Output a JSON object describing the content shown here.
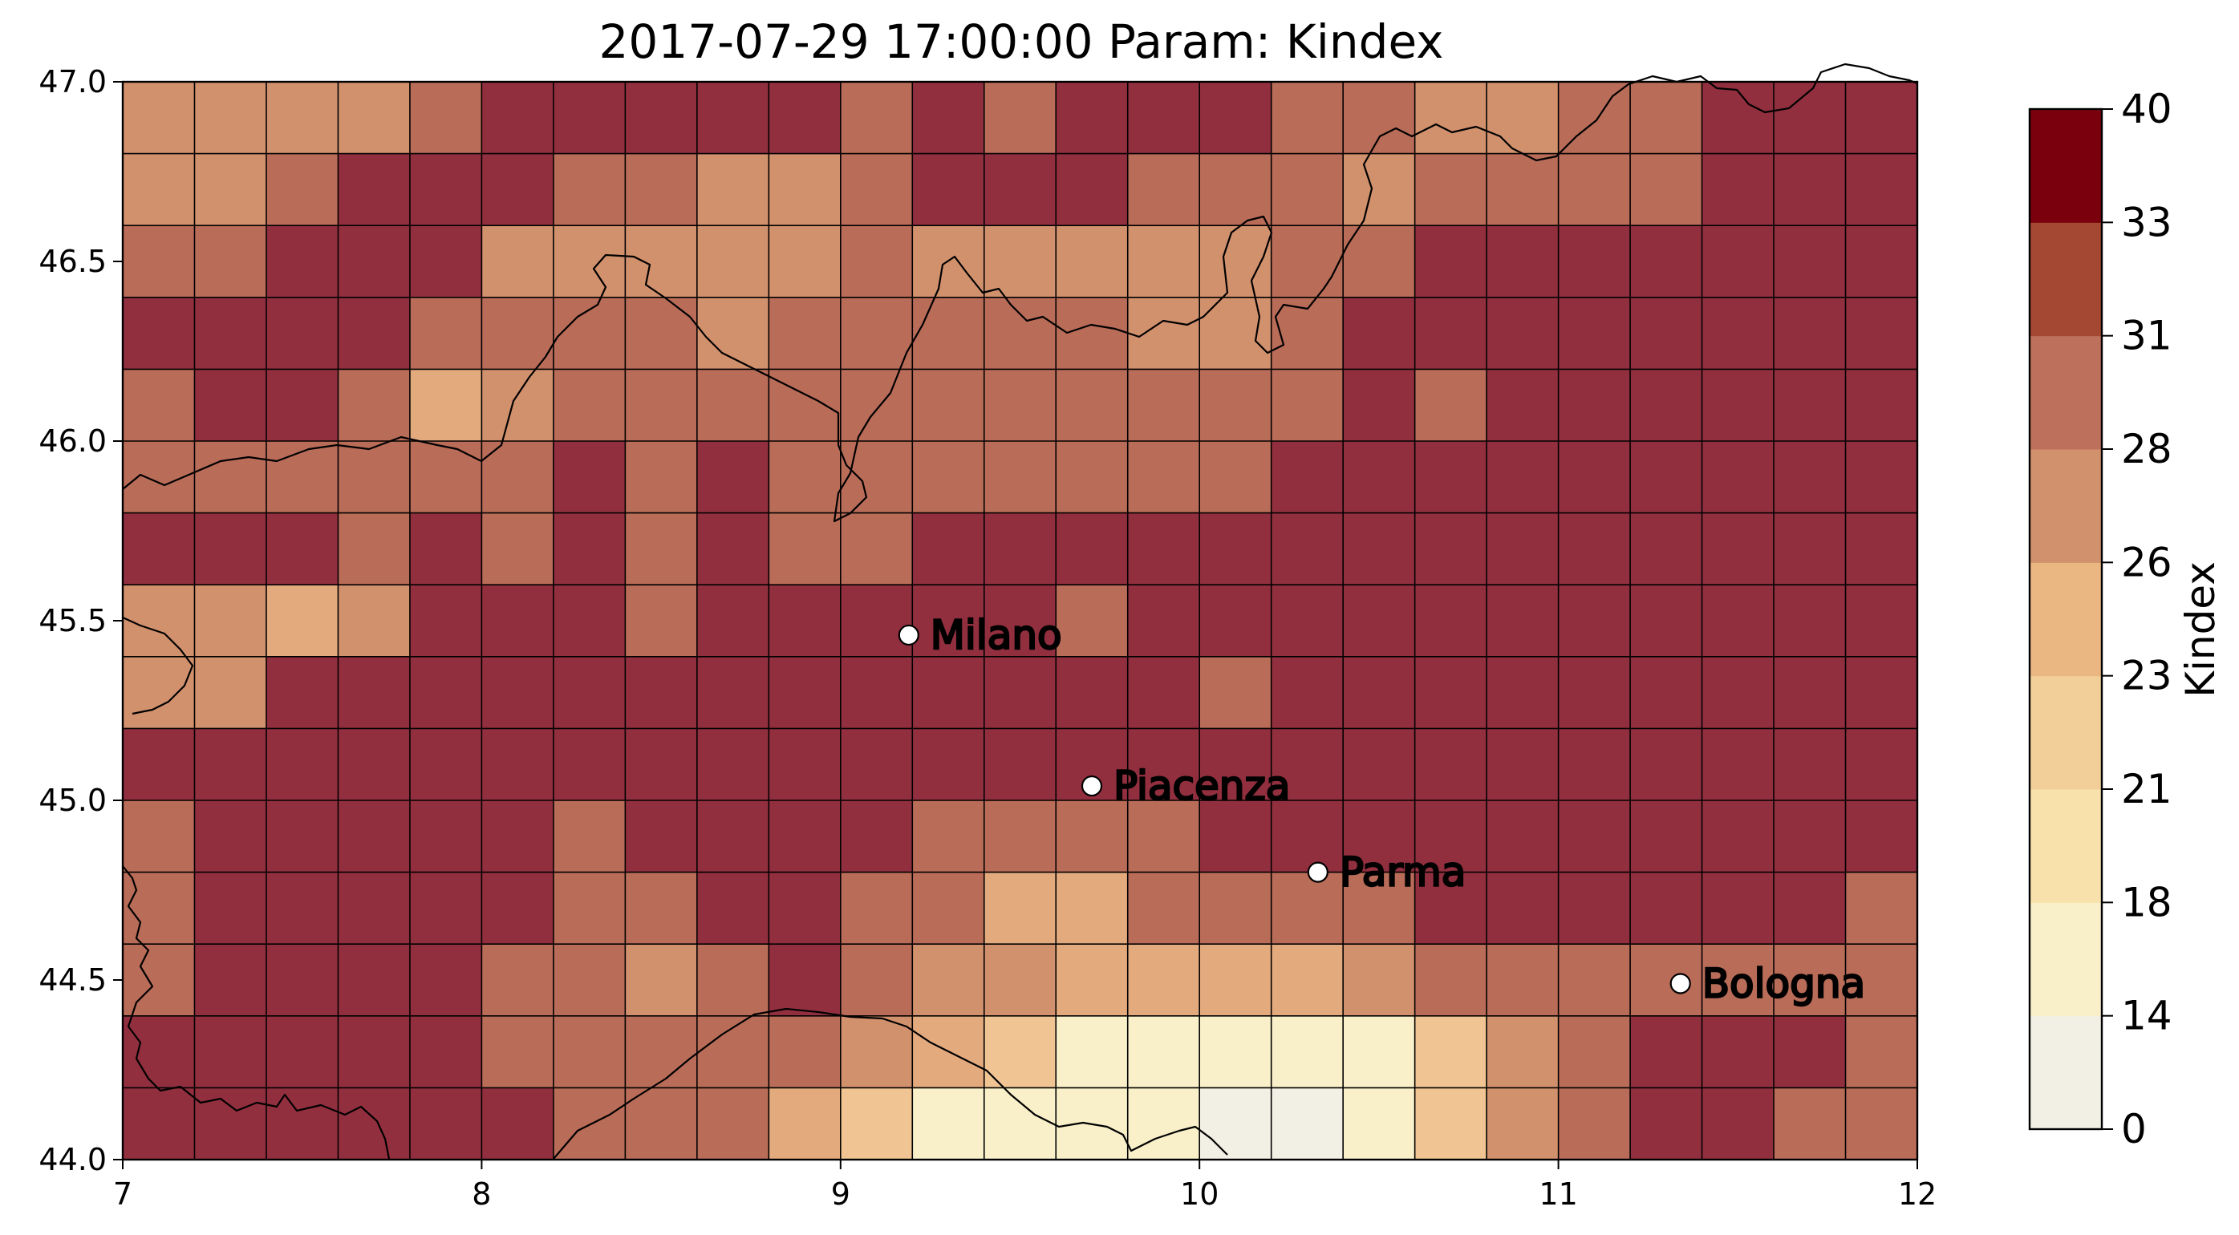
{
  "chart_data": {
    "type": "heatmap",
    "title": "2017-07-29 17:00:00 Param: Kindex",
    "x_ticks": [
      7,
      8,
      9,
      10,
      11,
      12
    ],
    "x_tick_labels": [
      "7",
      "8",
      "9",
      "10",
      "11",
      "12"
    ],
    "y_ticks": [
      44.0,
      44.5,
      45.0,
      45.5,
      46.0,
      46.5,
      47.0
    ],
    "y_tick_labels": [
      "44.0",
      "44.5",
      "45.0",
      "45.5",
      "46.0",
      "46.5",
      "47.0"
    ],
    "xlim": [
      7,
      12
    ],
    "ylim": [
      44,
      47
    ],
    "grid": {
      "lon_start": 7,
      "lon_step": 0.2,
      "cols": 25,
      "lat_start": 47,
      "lat_step": -0.2,
      "rows": 15,
      "rows_top_to_bottom_class": [
        [
          5,
          5,
          5,
          5,
          6,
          8,
          8,
          8,
          8,
          8,
          6,
          8,
          6,
          8,
          8,
          8,
          6,
          6,
          5,
          5,
          6,
          6,
          8,
          8,
          8
        ],
        [
          5,
          5,
          6,
          8,
          8,
          8,
          6,
          6,
          5,
          5,
          6,
          8,
          8,
          8,
          6,
          6,
          6,
          5,
          6,
          6,
          6,
          6,
          8,
          8,
          8
        ],
        [
          6,
          6,
          8,
          8,
          8,
          5,
          5,
          5,
          5,
          5,
          6,
          5,
          5,
          5,
          5,
          5,
          6,
          6,
          8,
          8,
          8,
          8,
          8,
          8,
          8
        ],
        [
          8,
          8,
          8,
          8,
          6,
          6,
          6,
          6,
          5,
          6,
          6,
          6,
          6,
          6,
          5,
          5,
          6,
          8,
          8,
          8,
          8,
          8,
          8,
          8,
          8
        ],
        [
          6,
          8,
          8,
          6,
          4,
          5,
          6,
          6,
          6,
          6,
          6,
          6,
          6,
          6,
          6,
          6,
          6,
          8,
          6,
          8,
          8,
          8,
          8,
          8,
          8
        ],
        [
          6,
          6,
          6,
          6,
          6,
          6,
          8,
          6,
          8,
          6,
          6,
          6,
          6,
          6,
          6,
          6,
          8,
          8,
          8,
          8,
          8,
          8,
          8,
          8,
          8
        ],
        [
          8,
          8,
          8,
          6,
          8,
          6,
          8,
          6,
          8,
          6,
          6,
          8,
          8,
          8,
          8,
          8,
          8,
          8,
          8,
          8,
          8,
          8,
          8,
          8,
          8
        ],
        [
          5,
          5,
          4,
          5,
          8,
          8,
          8,
          6,
          8,
          8,
          8,
          8,
          8,
          6,
          8,
          8,
          8,
          8,
          8,
          8,
          8,
          8,
          8,
          8,
          8
        ],
        [
          5,
          5,
          8,
          8,
          8,
          8,
          8,
          8,
          8,
          8,
          8,
          8,
          8,
          8,
          8,
          6,
          8,
          8,
          8,
          8,
          8,
          8,
          8,
          8,
          8
        ],
        [
          8,
          8,
          8,
          8,
          8,
          8,
          8,
          8,
          8,
          8,
          8,
          8,
          8,
          8,
          8,
          8,
          8,
          8,
          8,
          8,
          8,
          8,
          8,
          8,
          8
        ],
        [
          6,
          8,
          8,
          8,
          8,
          8,
          6,
          8,
          8,
          8,
          8,
          6,
          6,
          6,
          6,
          8,
          8,
          8,
          8,
          8,
          8,
          8,
          8,
          8,
          8
        ],
        [
          6,
          8,
          8,
          8,
          8,
          8,
          6,
          6,
          8,
          8,
          6,
          6,
          4,
          4,
          6,
          6,
          6,
          6,
          8,
          8,
          8,
          8,
          8,
          8,
          6
        ],
        [
          6,
          8,
          8,
          8,
          8,
          6,
          6,
          5,
          6,
          8,
          6,
          5,
          5,
          4,
          4,
          4,
          4,
          5,
          6,
          6,
          6,
          6,
          6,
          6,
          6
        ],
        [
          8,
          8,
          8,
          8,
          8,
          6,
          6,
          6,
          6,
          6,
          5,
          4,
          3,
          2,
          2,
          2,
          2,
          2,
          3,
          5,
          6,
          8,
          8,
          8,
          6
        ],
        [
          8,
          8,
          8,
          8,
          8,
          8,
          6,
          6,
          6,
          4,
          3,
          2,
          2,
          2,
          2,
          1,
          1,
          2,
          3,
          5,
          6,
          8,
          8,
          6,
          6
        ]
      ]
    },
    "colorbar": {
      "label": "Kindex",
      "levels": [
        "0",
        "14",
        "18",
        "21",
        "23",
        "26",
        "28",
        "31",
        "33",
        "40"
      ],
      "colors": [
        "#f2f0e4",
        "#f9efc9",
        "#f9e1ab",
        "#f2cf98",
        "#eab783",
        "#d2916d",
        "#bd705b",
        "#a44834",
        "#7b000e"
      ],
      "cell_colors": {
        "1": "#f2f0e4",
        "2": "#f9efc9",
        "3": "#f0c593",
        "4": "#e3aa7e",
        "5": "#d2916d",
        "6": "#b96c58",
        "8": "#922f3f"
      }
    },
    "cities": [
      {
        "name": "Milano",
        "lon": 9.19,
        "lat": 45.46
      },
      {
        "name": "Piacenza",
        "lon": 9.7,
        "lat": 45.04
      },
      {
        "name": "Parma",
        "lon": 10.33,
        "lat": 44.8
      },
      {
        "name": "Bologna",
        "lon": 11.34,
        "lat": 44.49
      }
    ]
  }
}
